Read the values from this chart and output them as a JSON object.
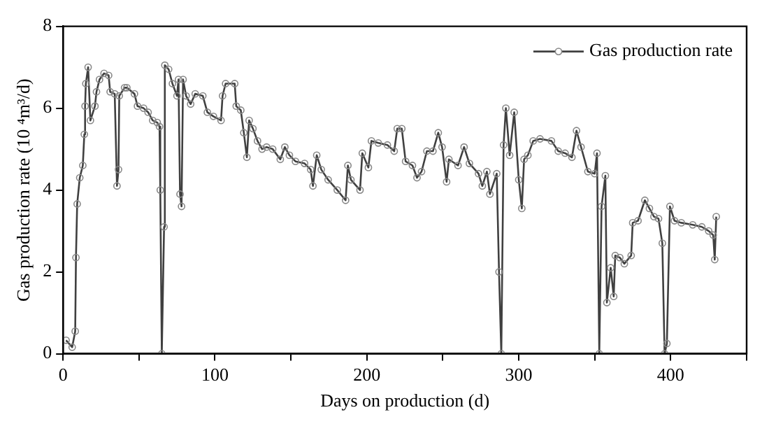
{
  "chart_data": {
    "type": "line",
    "xlabel": "Days on production (d)",
    "ylabel": "Gas production rate (10 ⁴m³/d)",
    "xlim": [
      0,
      450
    ],
    "xticks": [
      0,
      {
        "value": 50,
        "label": null
      },
      100,
      {
        "value": 150,
        "label": null
      },
      200,
      {
        "value": 250,
        "label": null
      },
      300,
      {
        "value": 350,
        "label": null
      },
      400,
      {
        "value": 450,
        "label": null
      }
    ],
    "ylim": [
      0,
      8
    ],
    "yticks": [
      0,
      2,
      4,
      6,
      8
    ],
    "grid": false,
    "legend": "top right",
    "marker": "circle",
    "line_style": "solid",
    "series": [
      {
        "name": "Gas production rate",
        "color": "#404040",
        "x": [
          2,
          6,
          8,
          8.5,
          9.3,
          11,
          13,
          14,
          14.5,
          15,
          16.5,
          18,
          21,
          22,
          24,
          27,
          30,
          31,
          34,
          35.5,
          36.5,
          37,
          40.5,
          42,
          47,
          49,
          53,
          56,
          59,
          62,
          63.5,
          64,
          65,
          66.5,
          67,
          69.5,
          72,
          75,
          76,
          77,
          78,
          79,
          81,
          84,
          87,
          92,
          95,
          99,
          104,
          105,
          107,
          113,
          114,
          117,
          119,
          121,
          122.5,
          125,
          128,
          131,
          134,
          138,
          143,
          146,
          149,
          153,
          159,
          163,
          164.5,
          167,
          170,
          174.5,
          180.5,
          186,
          187.5,
          189.5,
          195.5,
          197,
          201,
          203,
          207.5,
          213.5,
          218,
          220,
          223,
          225.5,
          230,
          233,
          236,
          239.5,
          243.5,
          247,
          249.5,
          252.5,
          254,
          260,
          264,
          267.5,
          273.5,
          276,
          279,
          281,
          285.5,
          287,
          288.5,
          290,
          291.5,
          294,
          297,
          300,
          302,
          303.5,
          306,
          309.5,
          314,
          321.5,
          326,
          330.5,
          335,
          338,
          341,
          345.5,
          350,
          351.5,
          353,
          354.5,
          357,
          358,
          360.5,
          362.5,
          363.5,
          366.5,
          369.5,
          374,
          375,
          378.5,
          383,
          386,
          389,
          392,
          394.5,
          396,
          397.5,
          399.5,
          402.5,
          407,
          414.5,
          420.5,
          425,
          428,
          429,
          430
        ],
        "values": [
          0.33,
          0.16,
          0.55,
          2.35,
          3.66,
          4.3,
          4.6,
          5.36,
          6.05,
          6.6,
          7.0,
          5.7,
          6.05,
          6.4,
          6.7,
          6.85,
          6.8,
          6.4,
          6.35,
          4.1,
          4.5,
          6.3,
          6.5,
          6.5,
          6.35,
          6.05,
          6.0,
          5.9,
          5.7,
          5.65,
          5.55,
          4.0,
          0,
          3.1,
          7.05,
          6.95,
          6.6,
          6.3,
          6.7,
          3.9,
          3.6,
          6.7,
          6.3,
          6.1,
          6.35,
          6.3,
          5.9,
          5.8,
          5.7,
          6.3,
          6.6,
          6.6,
          6.05,
          5.95,
          5.4,
          4.8,
          5.7,
          5.5,
          5.2,
          5.0,
          5.05,
          5.0,
          4.75,
          5.05,
          4.85,
          4.7,
          4.65,
          4.5,
          4.1,
          4.85,
          4.5,
          4.25,
          4.0,
          3.75,
          4.6,
          4.25,
          4.0,
          4.9,
          4.55,
          5.2,
          5.15,
          5.1,
          4.95,
          5.5,
          5.5,
          4.7,
          4.6,
          4.3,
          4.45,
          4.95,
          4.95,
          5.4,
          5.05,
          4.2,
          4.75,
          4.6,
          5.05,
          4.65,
          4.4,
          4.1,
          4.45,
          3.9,
          4.4,
          2.0,
          0,
          5.1,
          6.0,
          4.85,
          5.9,
          4.25,
          3.55,
          4.75,
          4.85,
          5.2,
          5.25,
          5.2,
          4.95,
          4.9,
          4.8,
          5.45,
          5.05,
          4.45,
          4.4,
          4.9,
          0,
          3.6,
          4.35,
          1.25,
          2.1,
          1.4,
          2.4,
          2.35,
          2.2,
          2.4,
          3.2,
          3.25,
          3.75,
          3.55,
          3.35,
          3.3,
          2.7,
          0,
          0.25,
          3.6,
          3.25,
          3.2,
          3.15,
          3.1,
          3.0,
          2.9,
          2.3,
          3.35
        ]
      }
    ]
  }
}
